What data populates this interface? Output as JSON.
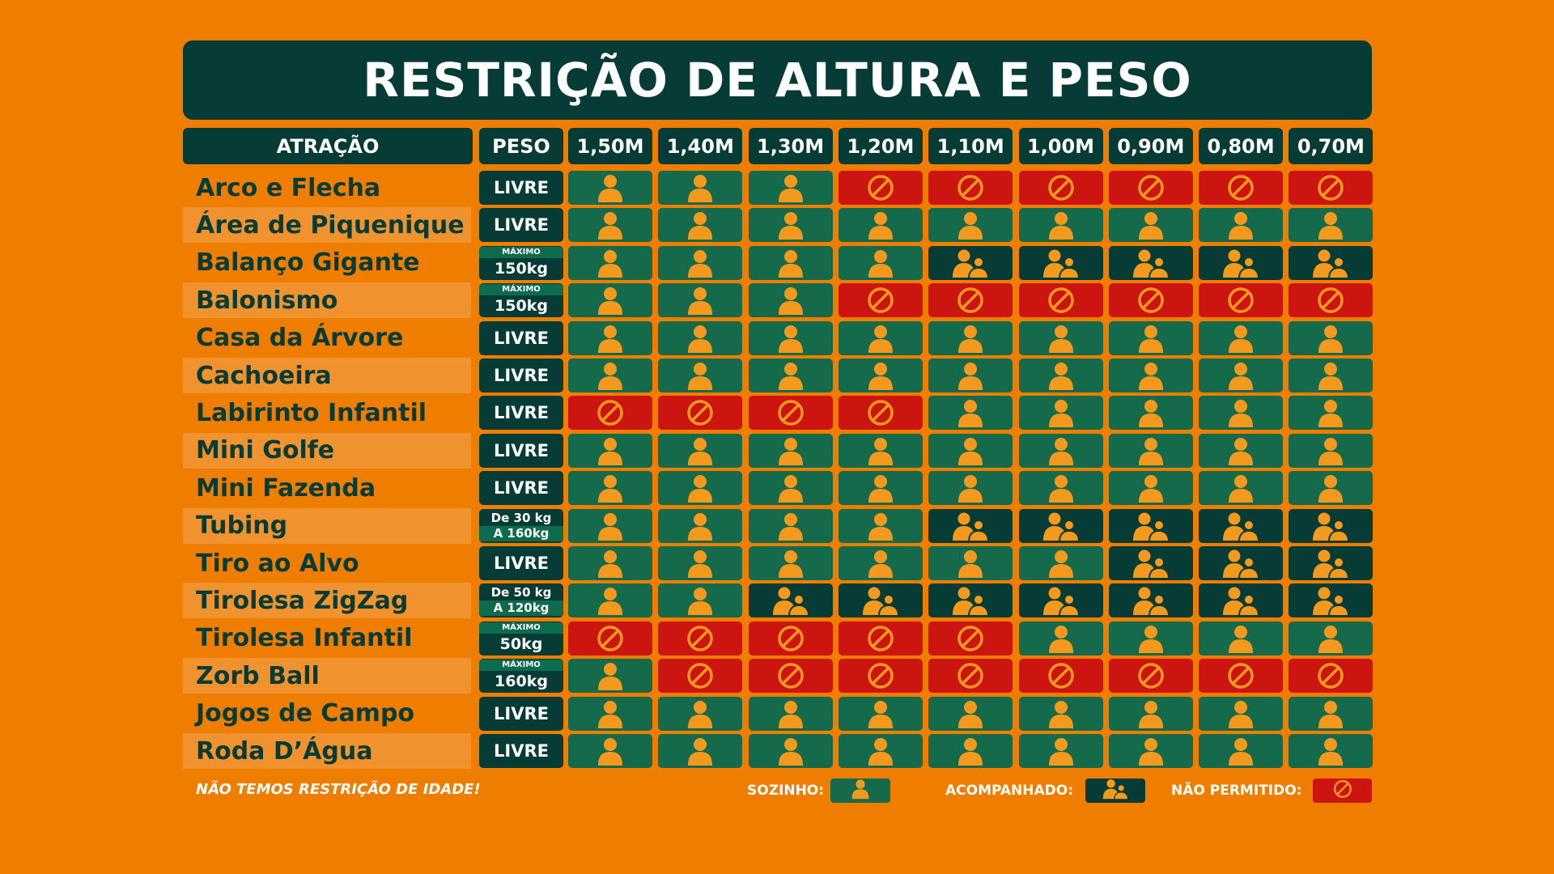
{
  "title": "RESTRIÇÃO DE ALTURA E PESO",
  "header": {
    "attraction": "ATRAÇÃO",
    "weight": "PESO",
    "heights": [
      "1,50M",
      "1,40M",
      "1,30M",
      "1,20M",
      "1,10M",
      "1,00M",
      "0,90M",
      "0,80M",
      "0,70M"
    ]
  },
  "rows": [
    {
      "name": "Arco e Flecha",
      "weight": {
        "kind": "simple",
        "text": "LIVRE"
      },
      "cells": [
        "s",
        "s",
        "s",
        "n",
        "n",
        "n",
        "n",
        "n",
        "n"
      ]
    },
    {
      "name": "Área de Piquenique",
      "weight": {
        "kind": "simple",
        "text": "LIVRE"
      },
      "cells": [
        "s",
        "s",
        "s",
        "s",
        "s",
        "s",
        "s",
        "s",
        "s"
      ]
    },
    {
      "name": "Balanço Gigante",
      "weight": {
        "kind": "max",
        "top": "MÁXIMO",
        "bottom": "150kg"
      },
      "cells": [
        "s",
        "s",
        "s",
        "s",
        "a",
        "a",
        "a",
        "a",
        "a"
      ]
    },
    {
      "name": "Balonismo",
      "weight": {
        "kind": "max",
        "top": "MÁXIMO",
        "bottom": "150kg"
      },
      "cells": [
        "s",
        "s",
        "s",
        "n",
        "n",
        "n",
        "n",
        "n",
        "n"
      ]
    },
    {
      "name": "Casa da Árvore",
      "weight": {
        "kind": "simple",
        "text": "LIVRE"
      },
      "cells": [
        "s",
        "s",
        "s",
        "s",
        "s",
        "s",
        "s",
        "s",
        "s"
      ]
    },
    {
      "name": "Cachoeira",
      "weight": {
        "kind": "simple",
        "text": "LIVRE"
      },
      "cells": [
        "s",
        "s",
        "s",
        "s",
        "s",
        "s",
        "s",
        "s",
        "s"
      ]
    },
    {
      "name": "Labirinto Infantil",
      "weight": {
        "kind": "simple",
        "text": "LIVRE"
      },
      "cells": [
        "n",
        "n",
        "n",
        "n",
        "s",
        "s",
        "s",
        "s",
        "s"
      ]
    },
    {
      "name": "Mini Golfe",
      "weight": {
        "kind": "simple",
        "text": "LIVRE"
      },
      "cells": [
        "s",
        "s",
        "s",
        "s",
        "s",
        "s",
        "s",
        "s",
        "s"
      ]
    },
    {
      "name": "Mini Fazenda",
      "weight": {
        "kind": "simple",
        "text": "LIVRE"
      },
      "cells": [
        "s",
        "s",
        "s",
        "s",
        "s",
        "s",
        "s",
        "s",
        "s"
      ]
    },
    {
      "name": "Tubing",
      "weight": {
        "kind": "range",
        "top": "De 30 kg",
        "bottom": "A 160kg"
      },
      "cells": [
        "s",
        "s",
        "s",
        "s",
        "a",
        "a",
        "a",
        "a",
        "a"
      ]
    },
    {
      "name": "Tiro ao Alvo",
      "weight": {
        "kind": "simple",
        "text": "LIVRE"
      },
      "cells": [
        "s",
        "s",
        "s",
        "s",
        "s",
        "s",
        "a",
        "a",
        "a"
      ]
    },
    {
      "name": "Tirolesa ZigZag",
      "weight": {
        "kind": "range",
        "top": "De 50 kg",
        "bottom": "A 120kg"
      },
      "cells": [
        "s",
        "s",
        "a",
        "a",
        "a",
        "a",
        "a",
        "a",
        "a"
      ]
    },
    {
      "name": "Tirolesa Infantil",
      "weight": {
        "kind": "max",
        "top": "MÁXIMO",
        "bottom": "50kg"
      },
      "cells": [
        "n",
        "n",
        "n",
        "n",
        "n",
        "s",
        "s",
        "s",
        "s"
      ]
    },
    {
      "name": "Zorb Ball",
      "weight": {
        "kind": "max",
        "top": "MÁXIMO",
        "bottom": "160kg"
      },
      "cells": [
        "s",
        "n",
        "n",
        "n",
        "n",
        "n",
        "n",
        "n",
        "n"
      ]
    },
    {
      "name": "Jogos de Campo",
      "weight": {
        "kind": "simple",
        "text": "LIVRE"
      },
      "cells": [
        "s",
        "s",
        "s",
        "s",
        "s",
        "s",
        "s",
        "s",
        "s"
      ]
    },
    {
      "name": "Roda D’Água",
      "weight": {
        "kind": "simple",
        "text": "LIVRE"
      },
      "cells": [
        "s",
        "s",
        "s",
        "s",
        "s",
        "s",
        "s",
        "s",
        "s"
      ]
    }
  ],
  "footer": {
    "note": "NÃO TEMOS RESTRIÇÃO DE IDADE!",
    "legend": {
      "alone": "SOZINHO:",
      "accompanied": "ACOMPANHADO:",
      "not_allowed": "NÃO PERMITIDO:"
    }
  },
  "icons": {
    "s": "person-icon",
    "a": "two-people-icon",
    "n": "prohibited-icon"
  },
  "colors": {
    "background": "#ef7d00",
    "dark_green": "#073b35",
    "green": "#146a4b",
    "red": "#cc1411",
    "icon_orange": "#f39a1e"
  }
}
